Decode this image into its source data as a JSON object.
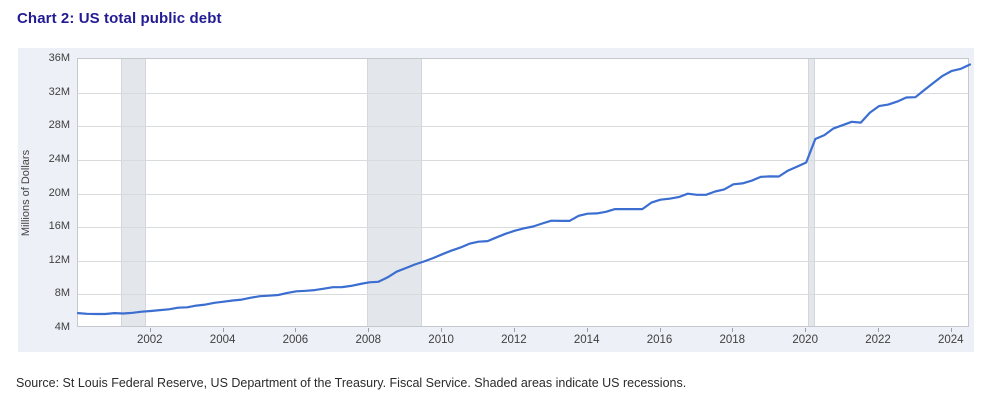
{
  "page": {
    "title": "Chart 2: US total public debt",
    "source_note": "Source: St Louis Federal Reserve, US Department of the Treasury. Fiscal Service. Shaded areas indicate US recessions."
  },
  "chart_data": {
    "type": "line",
    "title": "Chart 2: US total public debt",
    "xlabel": "",
    "ylabel": "Millions of Dollars",
    "xlim": [
      2000,
      2024.5
    ],
    "ylim": [
      4,
      36
    ],
    "grid": "horizontal",
    "legend": "none",
    "line_color": "#3b6ed0",
    "x_ticks": [
      2002,
      2004,
      2006,
      2008,
      2010,
      2012,
      2014,
      2016,
      2018,
      2020,
      2022,
      2024
    ],
    "y_ticks": [
      {
        "value": 36,
        "label": "36M"
      },
      {
        "value": 32,
        "label": "32M"
      },
      {
        "value": 28,
        "label": "28M"
      },
      {
        "value": 24,
        "label": "24M"
      },
      {
        "value": 20,
        "label": "20M"
      },
      {
        "value": 16,
        "label": "16M"
      },
      {
        "value": 12,
        "label": "12M"
      },
      {
        "value": 8,
        "label": "8M"
      },
      {
        "value": 4,
        "label": "4M"
      }
    ],
    "recessions": [
      {
        "start": 2001.17,
        "end": 2001.87
      },
      {
        "start": 2007.95,
        "end": 2009.45
      },
      {
        "start": 2020.05,
        "end": 2020.25
      }
    ],
    "series": [
      {
        "name": "US total public debt (millions of dollars, quarterly)",
        "points": [
          [
            2000.0,
            5.77
          ],
          [
            2000.25,
            5.69
          ],
          [
            2000.5,
            5.67
          ],
          [
            2000.75,
            5.66
          ],
          [
            2001.0,
            5.77
          ],
          [
            2001.25,
            5.73
          ],
          [
            2001.5,
            5.81
          ],
          [
            2001.75,
            5.94
          ],
          [
            2002.0,
            6.02
          ],
          [
            2002.25,
            6.13
          ],
          [
            2002.5,
            6.23
          ],
          [
            2002.75,
            6.41
          ],
          [
            2003.0,
            6.46
          ],
          [
            2003.25,
            6.67
          ],
          [
            2003.5,
            6.78
          ],
          [
            2003.75,
            7.0
          ],
          [
            2004.0,
            7.13
          ],
          [
            2004.25,
            7.27
          ],
          [
            2004.5,
            7.38
          ],
          [
            2004.75,
            7.6
          ],
          [
            2005.0,
            7.78
          ],
          [
            2005.25,
            7.84
          ],
          [
            2005.5,
            7.93
          ],
          [
            2005.75,
            8.17
          ],
          [
            2006.0,
            8.37
          ],
          [
            2006.25,
            8.42
          ],
          [
            2006.5,
            8.51
          ],
          [
            2006.75,
            8.68
          ],
          [
            2007.0,
            8.85
          ],
          [
            2007.25,
            8.87
          ],
          [
            2007.5,
            9.01
          ],
          [
            2007.75,
            9.23
          ],
          [
            2008.0,
            9.44
          ],
          [
            2008.25,
            9.49
          ],
          [
            2008.5,
            10.02
          ],
          [
            2008.75,
            10.7
          ],
          [
            2009.0,
            11.13
          ],
          [
            2009.25,
            11.55
          ],
          [
            2009.5,
            11.91
          ],
          [
            2009.75,
            12.31
          ],
          [
            2010.0,
            12.77
          ],
          [
            2010.25,
            13.19
          ],
          [
            2010.5,
            13.56
          ],
          [
            2010.75,
            14.03
          ],
          [
            2011.0,
            14.27
          ],
          [
            2011.25,
            14.34
          ],
          [
            2011.5,
            14.79
          ],
          [
            2011.75,
            15.22
          ],
          [
            2012.0,
            15.58
          ],
          [
            2012.25,
            15.86
          ],
          [
            2012.5,
            16.07
          ],
          [
            2012.75,
            16.43
          ],
          [
            2013.0,
            16.77
          ],
          [
            2013.25,
            16.74
          ],
          [
            2013.5,
            16.74
          ],
          [
            2013.75,
            17.35
          ],
          [
            2014.0,
            17.6
          ],
          [
            2014.25,
            17.63
          ],
          [
            2014.5,
            17.82
          ],
          [
            2014.75,
            18.14
          ],
          [
            2015.0,
            18.15
          ],
          [
            2015.25,
            18.15
          ],
          [
            2015.5,
            18.15
          ],
          [
            2015.75,
            18.92
          ],
          [
            2016.0,
            19.26
          ],
          [
            2016.25,
            19.38
          ],
          [
            2016.5,
            19.57
          ],
          [
            2016.75,
            19.98
          ],
          [
            2017.0,
            19.85
          ],
          [
            2017.25,
            19.84
          ],
          [
            2017.5,
            20.24
          ],
          [
            2017.75,
            20.49
          ],
          [
            2018.0,
            21.09
          ],
          [
            2018.25,
            21.2
          ],
          [
            2018.5,
            21.52
          ],
          [
            2018.75,
            21.97
          ],
          [
            2019.0,
            22.03
          ],
          [
            2019.25,
            22.02
          ],
          [
            2019.5,
            22.72
          ],
          [
            2019.75,
            23.2
          ],
          [
            2020.0,
            23.69
          ],
          [
            2020.25,
            26.48
          ],
          [
            2020.5,
            26.95
          ],
          [
            2020.75,
            27.75
          ],
          [
            2021.0,
            28.13
          ],
          [
            2021.25,
            28.53
          ],
          [
            2021.5,
            28.43
          ],
          [
            2021.75,
            29.62
          ],
          [
            2022.0,
            30.4
          ],
          [
            2022.25,
            30.57
          ],
          [
            2022.5,
            30.93
          ],
          [
            2022.75,
            31.42
          ],
          [
            2023.0,
            31.46
          ],
          [
            2023.25,
            32.33
          ],
          [
            2023.5,
            33.17
          ],
          [
            2023.75,
            34.0
          ],
          [
            2024.0,
            34.59
          ],
          [
            2024.25,
            34.83
          ],
          [
            2024.5,
            35.35
          ]
        ]
      }
    ]
  }
}
